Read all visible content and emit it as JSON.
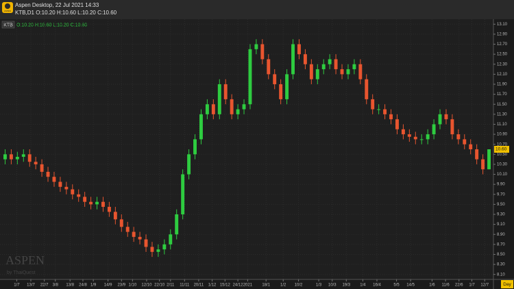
{
  "header": {
    "app_title": "Aspen Desktop, 22 Jul 2021 14:33",
    "quote_line": "KTB,D1 O:10.20 H:10.60 L:10.20 C:10.60",
    "icon_text": "ASPEN"
  },
  "watermark": {
    "brand": "ASPEN",
    "by": "by ThaiQuest"
  },
  "chart_data": {
    "type": "candlestick",
    "symbol": "KTB",
    "ohlc_label": "O:10.20 H:10.60 L:10.20 C:10.60",
    "period_label": "Day",
    "last_value_label": "10.60",
    "up_color": "#2ecc40",
    "down_color": "#e8552f",
    "grid": true,
    "open": [
      10.4,
      10.5,
      10.4,
      10.45,
      10.5,
      10.35,
      10.3,
      10.15,
      10.05,
      9.95,
      9.85,
      9.8,
      9.7,
      9.65,
      9.55,
      9.5,
      9.55,
      9.45,
      9.35,
      9.2,
      9.05,
      8.95,
      8.85,
      8.8,
      8.65,
      8.55,
      8.6,
      8.7,
      8.9,
      9.3,
      10.1,
      10.5,
      10.8,
      11.3,
      11.5,
      11.3,
      11.9,
      11.6,
      11.3,
      11.4,
      11.5,
      12.6,
      12.7,
      12.4,
      12.1,
      11.9,
      11.6,
      12.1,
      12.7,
      12.5,
      12.3,
      12.0,
      12.2,
      12.3,
      12.4,
      12.2,
      12.1,
      12.2,
      12.3,
      12.0,
      11.6,
      11.4,
      11.4,
      11.3,
      11.2,
      11.0,
      10.9,
      10.85,
      10.8,
      10.8,
      10.9,
      11.1,
      11.3,
      11.2,
      10.9,
      10.8,
      10.7,
      10.6,
      10.4,
      10.2
    ],
    "high": [
      10.6,
      10.6,
      10.55,
      10.6,
      10.6,
      10.45,
      10.4,
      10.25,
      10.15,
      10.05,
      9.95,
      9.9,
      9.8,
      9.75,
      9.65,
      9.65,
      9.65,
      9.55,
      9.45,
      9.3,
      9.15,
      9.05,
      8.95,
      8.9,
      8.75,
      8.7,
      8.8,
      9.0,
      9.4,
      10.2,
      10.6,
      10.9,
      11.4,
      11.6,
      11.6,
      12.0,
      12.0,
      11.7,
      11.5,
      11.6,
      12.7,
      12.8,
      12.8,
      12.5,
      12.2,
      12.0,
      12.2,
      12.8,
      12.8,
      12.6,
      12.4,
      12.3,
      12.4,
      12.5,
      12.5,
      12.3,
      12.3,
      12.4,
      12.4,
      12.1,
      11.7,
      11.5,
      11.5,
      11.4,
      11.3,
      11.1,
      11.0,
      10.95,
      10.9,
      11.0,
      11.2,
      11.4,
      11.4,
      11.3,
      11.0,
      10.9,
      10.8,
      10.7,
      10.5,
      10.6
    ],
    "low": [
      10.3,
      10.3,
      10.3,
      10.35,
      10.25,
      10.2,
      10.05,
      9.95,
      9.85,
      9.75,
      9.7,
      9.6,
      9.55,
      9.45,
      9.4,
      9.4,
      9.35,
      9.25,
      9.1,
      8.95,
      8.85,
      8.75,
      8.7,
      8.55,
      8.45,
      8.45,
      8.5,
      8.6,
      8.8,
      9.2,
      10.0,
      10.4,
      10.7,
      11.2,
      11.2,
      11.2,
      11.5,
      11.2,
      11.2,
      11.3,
      11.4,
      12.5,
      12.3,
      12.0,
      11.8,
      11.5,
      11.5,
      12.0,
      12.4,
      12.2,
      11.9,
      11.9,
      12.1,
      12.2,
      12.1,
      12.0,
      12.0,
      12.1,
      11.9,
      11.5,
      11.3,
      11.3,
      11.2,
      11.1,
      10.9,
      10.8,
      10.75,
      10.7,
      10.7,
      10.7,
      10.8,
      11.0,
      11.1,
      10.8,
      10.7,
      10.6,
      10.5,
      10.3,
      10.1,
      10.2
    ],
    "close": [
      10.5,
      10.4,
      10.45,
      10.5,
      10.35,
      10.3,
      10.15,
      10.05,
      9.95,
      9.85,
      9.8,
      9.7,
      9.65,
      9.55,
      9.5,
      9.55,
      9.45,
      9.35,
      9.2,
      9.05,
      8.95,
      8.85,
      8.8,
      8.65,
      8.55,
      8.6,
      8.7,
      8.9,
      9.3,
      10.1,
      10.5,
      10.8,
      11.3,
      11.5,
      11.3,
      11.9,
      11.6,
      11.3,
      11.4,
      11.5,
      12.6,
      12.7,
      12.4,
      12.1,
      11.9,
      11.6,
      12.1,
      12.7,
      12.5,
      12.3,
      12.0,
      12.2,
      12.3,
      12.4,
      12.2,
      12.1,
      12.2,
      12.3,
      12.0,
      11.6,
      11.4,
      11.4,
      11.3,
      11.2,
      11.0,
      10.9,
      10.85,
      10.8,
      10.8,
      10.9,
      11.1,
      11.3,
      11.2,
      10.9,
      10.8,
      10.7,
      10.6,
      10.4,
      10.2,
      10.6
    ],
    "xlim": [
      -0.5,
      79.5
    ],
    "xticks": [
      {
        "value": 1.9,
        "label": "1/7"
      },
      {
        "value": 4.2,
        "label": "13/7"
      },
      {
        "value": 6.4,
        "label": "22/7"
      },
      {
        "value": 8.2,
        "label": "3/8"
      },
      {
        "value": 10.6,
        "label": "13/8"
      },
      {
        "value": 12.7,
        "label": "24/8"
      },
      {
        "value": 14.4,
        "label": "1/9"
      },
      {
        "value": 16.8,
        "label": "14/9"
      },
      {
        "value": 19,
        "label": "23/9"
      },
      {
        "value": 20.8,
        "label": "1/10"
      },
      {
        "value": 23.1,
        "label": "12/10"
      },
      {
        "value": 25.2,
        "label": "22/10"
      },
      {
        "value": 27,
        "label": "2/11"
      },
      {
        "value": 29.3,
        "label": "11/11"
      },
      {
        "value": 31.6,
        "label": "20/11"
      },
      {
        "value": 33.8,
        "label": "1/12"
      },
      {
        "value": 35.9,
        "label": "15/12"
      },
      {
        "value": 38,
        "label": "24/12"
      },
      {
        "value": 39.6,
        "label": "2021"
      },
      {
        "value": 42.6,
        "label": "18/1"
      },
      {
        "value": 45.4,
        "label": "1/2"
      },
      {
        "value": 47.9,
        "label": "10/2"
      },
      {
        "value": 51.2,
        "label": "1/3"
      },
      {
        "value": 53.4,
        "label": "10/3"
      },
      {
        "value": 55.7,
        "label": "19/3"
      },
      {
        "value": 58.4,
        "label": "1/4"
      },
      {
        "value": 60.7,
        "label": "16/4"
      },
      {
        "value": 63.9,
        "label": "5/5"
      },
      {
        "value": 66.2,
        "label": "14/5"
      },
      {
        "value": 69.7,
        "label": "1/6"
      },
      {
        "value": 71.9,
        "label": "11/6"
      },
      {
        "value": 74.1,
        "label": "22/6"
      },
      {
        "value": 76.2,
        "label": "1/7"
      },
      {
        "value": 78.3,
        "label": "12/7"
      }
    ],
    "ylim": [
      8.0,
      13.2
    ],
    "yticks": [
      {
        "value": 13.1,
        "label": "13.10"
      },
      {
        "value": 12.9,
        "label": "12.90"
      },
      {
        "value": 12.7,
        "label": "12.70"
      },
      {
        "value": 12.5,
        "label": "12.50"
      },
      {
        "value": 12.3,
        "label": "12.30"
      },
      {
        "value": 12.1,
        "label": "12.10"
      },
      {
        "value": 11.9,
        "label": "11.90"
      },
      {
        "value": 11.7,
        "label": "11.70"
      },
      {
        "value": 11.5,
        "label": "11.50"
      },
      {
        "value": 11.3,
        "label": "11.30"
      },
      {
        "value": 11.1,
        "label": "11.10"
      },
      {
        "value": 10.9,
        "label": "10.90"
      },
      {
        "value": 10.7,
        "label": "10.70"
      },
      {
        "value": 10.5,
        "label": "10.50"
      },
      {
        "value": 10.3,
        "label": "10.30"
      },
      {
        "value": 10.1,
        "label": "10.10"
      },
      {
        "value": 9.9,
        "label": "9.90"
      },
      {
        "value": 9.7,
        "label": "9.70"
      },
      {
        "value": 9.5,
        "label": "9.50"
      },
      {
        "value": 9.3,
        "label": "9.30"
      },
      {
        "value": 9.1,
        "label": "9.10"
      },
      {
        "value": 8.9,
        "label": "8.90"
      },
      {
        "value": 8.7,
        "label": "8.70"
      },
      {
        "value": 8.5,
        "label": "8.50"
      },
      {
        "value": 8.3,
        "label": "8.30"
      },
      {
        "value": 8.1,
        "label": "8.10"
      }
    ]
  }
}
